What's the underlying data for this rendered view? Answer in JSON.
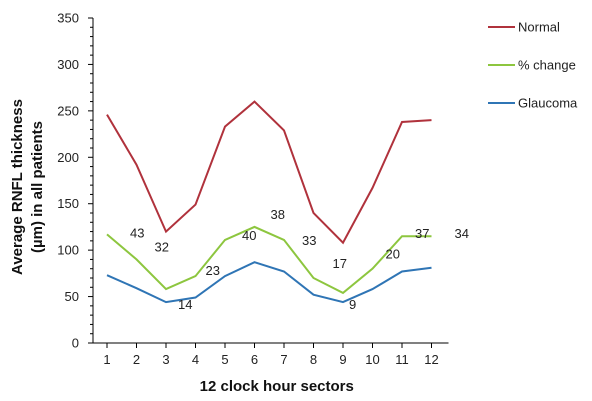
{
  "chart_data": {
    "type": "line",
    "xlabel": "12 clock hour sectors",
    "ylabel": [
      "Average RNFL thickness",
      "(µm) in all patients"
    ],
    "x": [
      1,
      2,
      3,
      4,
      5,
      6,
      7,
      8,
      9,
      10,
      11,
      12
    ],
    "x_tick_labels": [
      "1",
      "2",
      "3",
      "4",
      "5",
      "6",
      "7",
      "8",
      "9",
      "10",
      "11",
      "12"
    ],
    "ylim": [
      0,
      350
    ],
    "y_ticks": [
      0,
      50,
      100,
      150,
      200,
      250,
      300,
      350
    ],
    "y_tick_labels": [
      "0",
      "50",
      "100",
      "150",
      "200",
      "250",
      "300",
      "350"
    ],
    "grid": false,
    "legend_position": "right",
    "series": [
      {
        "name": "Normal",
        "color": "#b0323c",
        "values": [
          246,
          192,
          120,
          149,
          233,
          260,
          229,
          140,
          108,
          167,
          238,
          240
        ]
      },
      {
        "name": "% change",
        "color": "#8dc63f",
        "values": [
          117,
          90,
          58,
          72,
          111,
          125,
          111,
          70,
          54,
          80,
          115,
          115
        ]
      },
      {
        "name": "Glaucoma",
        "color": "#2f75b5",
        "values": [
          73,
          59,
          44,
          49,
          72,
          87,
          77,
          52,
          44,
          58,
          77,
          81
        ]
      }
    ],
    "data_labels": [
      "43",
      "32",
      "14",
      "23",
      "40",
      "38",
      "33",
      "17",
      "9",
      "20",
      "37",
      "34"
    ]
  }
}
